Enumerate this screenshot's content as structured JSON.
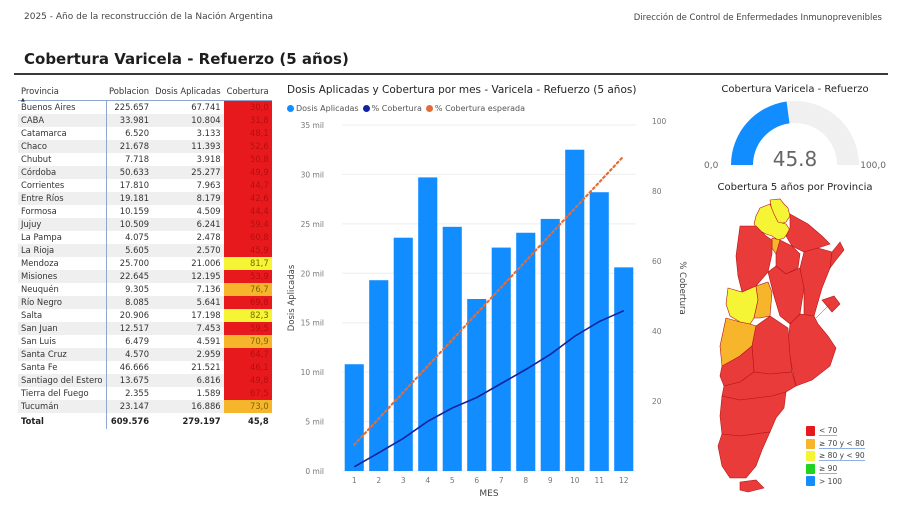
{
  "header": {
    "left_text": "2025 - Año de la reconstrucción de la Nación Argentina",
    "right_text": "Dirección de Control de Enfermedades Inmunoprevenibles",
    "page_title": "Cobertura Varicela - Refuerzo (5 años)"
  },
  "table": {
    "columns": [
      "Provincia",
      "Poblacion",
      "Dosis Aplicadas",
      "Cobertura"
    ],
    "sort_indicator": "▲",
    "rows": [
      {
        "provincia": "Buenos Aires",
        "poblacion": "225.657",
        "dosis": "67.741",
        "cobertura": "30,0",
        "color": "#e8191c"
      },
      {
        "provincia": "CABA",
        "poblacion": "33.981",
        "dosis": "10.804",
        "cobertura": "31,8",
        "color": "#e8191c"
      },
      {
        "provincia": "Catamarca",
        "poblacion": "6.520",
        "dosis": "3.133",
        "cobertura": "48,1",
        "color": "#e8191c"
      },
      {
        "provincia": "Chaco",
        "poblacion": "21.678",
        "dosis": "11.393",
        "cobertura": "52,6",
        "color": "#e8191c"
      },
      {
        "provincia": "Chubut",
        "poblacion": "7.718",
        "dosis": "3.918",
        "cobertura": "50,8",
        "color": "#e8191c"
      },
      {
        "provincia": "Córdoba",
        "poblacion": "50.633",
        "dosis": "25.277",
        "cobertura": "49,9",
        "color": "#e8191c"
      },
      {
        "provincia": "Corrientes",
        "poblacion": "17.810",
        "dosis": "7.963",
        "cobertura": "44,7",
        "color": "#e8191c"
      },
      {
        "provincia": "Entre Ríos",
        "poblacion": "19.181",
        "dosis": "8.179",
        "cobertura": "42,6",
        "color": "#e8191c"
      },
      {
        "provincia": "Formosa",
        "poblacion": "10.159",
        "dosis": "4.509",
        "cobertura": "44,4",
        "color": "#e8191c"
      },
      {
        "provincia": "Jujuy",
        "poblacion": "10.509",
        "dosis": "6.241",
        "cobertura": "59,4",
        "color": "#e8191c"
      },
      {
        "provincia": "La Pampa",
        "poblacion": "4.075",
        "dosis": "2.478",
        "cobertura": "60,8",
        "color": "#e8191c"
      },
      {
        "provincia": "La Rioja",
        "poblacion": "5.605",
        "dosis": "2.570",
        "cobertura": "45,9",
        "color": "#e8191c"
      },
      {
        "provincia": "Mendoza",
        "poblacion": "25.700",
        "dosis": "21.006",
        "cobertura": "81,7",
        "color": "#f5f536"
      },
      {
        "provincia": "Misiones",
        "poblacion": "22.645",
        "dosis": "12.195",
        "cobertura": "53,9",
        "color": "#e8191c"
      },
      {
        "provincia": "Neuquén",
        "poblacion": "9.305",
        "dosis": "7.136",
        "cobertura": "76,7",
        "color": "#f7b52c"
      },
      {
        "provincia": "Río Negro",
        "poblacion": "8.085",
        "dosis": "5.641",
        "cobertura": "69,8",
        "color": "#e8191c"
      },
      {
        "provincia": "Salta",
        "poblacion": "20.906",
        "dosis": "17.198",
        "cobertura": "82,3",
        "color": "#f5f536"
      },
      {
        "provincia": "San Juan",
        "poblacion": "12.517",
        "dosis": "7.453",
        "cobertura": "59,5",
        "color": "#e8191c"
      },
      {
        "provincia": "San Luis",
        "poblacion": "6.479",
        "dosis": "4.591",
        "cobertura": "70,9",
        "color": "#f7b52c"
      },
      {
        "provincia": "Santa Cruz",
        "poblacion": "4.570",
        "dosis": "2.959",
        "cobertura": "64,7",
        "color": "#e8191c"
      },
      {
        "provincia": "Santa Fe",
        "poblacion": "46.666",
        "dosis": "21.521",
        "cobertura": "46,1",
        "color": "#e8191c"
      },
      {
        "provincia": "Santiago del Estero",
        "poblacion": "13.675",
        "dosis": "6.816",
        "cobertura": "49,8",
        "color": "#e8191c"
      },
      {
        "provincia": "Tierra del Fuego",
        "poblacion": "2.355",
        "dosis": "1.589",
        "cobertura": "67,5",
        "color": "#e8191c"
      },
      {
        "provincia": "Tucumán",
        "poblacion": "23.147",
        "dosis": "16.886",
        "cobertura": "73,0",
        "color": "#f7b52c"
      }
    ],
    "total": {
      "label": "Total",
      "poblacion": "609.576",
      "dosis": "279.197",
      "cobertura": "45,8"
    }
  },
  "chart": {
    "title": "Dosis Aplicadas y Cobertura por mes - Varicela - Refuerzo (5 años)",
    "legend": [
      {
        "label": "Dosis Aplicadas",
        "color": "#118dff"
      },
      {
        "label": "% Cobertura",
        "color": "#12239e"
      },
      {
        "label": "% Cobertura esperada",
        "color": "#e66c37"
      }
    ]
  },
  "chart_data": [
    {
      "type": "bar",
      "title": "Dosis Aplicadas y Cobertura por mes - Varicela - Refuerzo (5 años)",
      "xlabel": "MES",
      "ylabel": "Dosis Aplicadas",
      "y2label": "% Cobertura",
      "categories": [
        "1",
        "2",
        "3",
        "4",
        "5",
        "6",
        "7",
        "8",
        "9",
        "10",
        "11",
        "12"
      ],
      "yticks": [
        "0 mil",
        "5 mil",
        "10 mil",
        "15 mil",
        "20 mil",
        "25 mil",
        "30 mil",
        "35 mil"
      ],
      "y2ticks": [
        "20",
        "40",
        "60",
        "80",
        "100"
      ],
      "ylim": [
        0,
        35000
      ],
      "y2lim": [
        0,
        100
      ],
      "legend_position": "top-left",
      "grid": true,
      "series": [
        {
          "name": "Dosis Aplicadas",
          "type": "bar",
          "axis": "left",
          "color": "#118dff",
          "values": [
            10800,
            19300,
            23600,
            29700,
            24700,
            17400,
            22600,
            24100,
            25500,
            32500,
            28200,
            20600
          ]
        },
        {
          "name": "% Cobertura",
          "type": "line",
          "axis": "right",
          "color": "#12239e",
          "values": [
            1.2,
            5.2,
            9.3,
            14.2,
            18.0,
            21.0,
            25.0,
            29.0,
            33.3,
            38.5,
            42.7,
            45.8
          ]
        },
        {
          "name": "% Cobertura esperada",
          "type": "line-dotted",
          "axis": "right",
          "color": "#e66c37",
          "values": [
            7.5,
            15.0,
            22.5,
            30.0,
            37.5,
            45.0,
            52.5,
            60.0,
            67.5,
            75.0,
            82.5,
            90.0
          ]
        }
      ]
    },
    {
      "type": "gauge",
      "title": "Cobertura Varicela - Refuerzo",
      "value": 45.8,
      "min": 0,
      "max": 100
    }
  ],
  "gauge": {
    "title": "Cobertura Varicela - Refuerzo",
    "value_label": "45.8",
    "min_label": "0,0",
    "max_label": "100,0",
    "fill_color": "#118dff",
    "track_color": "#f0f0f0"
  },
  "map": {
    "title": "Cobertura 5 años por Provincia",
    "legend": [
      {
        "label": "< 70",
        "color": "#e8191c"
      },
      {
        "label": "≥ 70 y < 80",
        "color": "#f7b52c"
      },
      {
        "label": "≥ 80 y < 90",
        "color": "#f5f536"
      },
      {
        "label": "≥ 90",
        "color": "#22d422"
      },
      {
        "label": "> 100",
        "color": "#118dff"
      }
    ]
  }
}
